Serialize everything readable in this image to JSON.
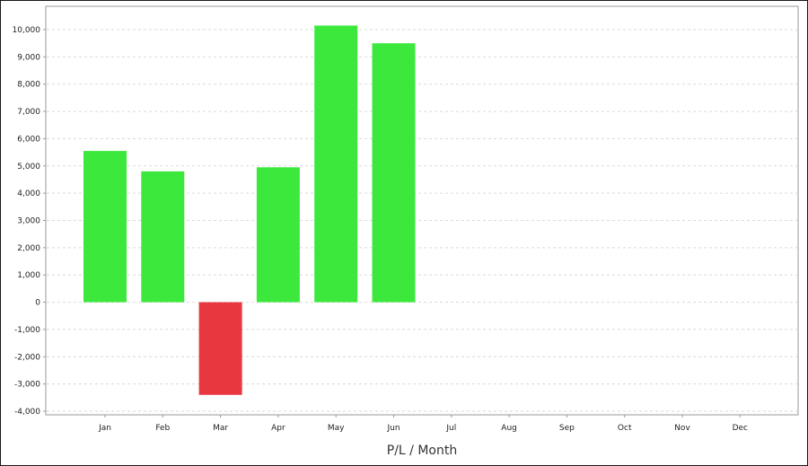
{
  "chart_data": {
    "type": "bar",
    "title": "",
    "xlabel": "P/L / Month",
    "ylabel": "",
    "categories": [
      "Jan",
      "Feb",
      "Mar",
      "Apr",
      "May",
      "Jun",
      "Jul",
      "Aug",
      "Sep",
      "Oct",
      "Nov",
      "Dec"
    ],
    "values": [
      5550,
      4800,
      -3400,
      4950,
      10150,
      9500,
      null,
      null,
      null,
      null,
      null,
      null
    ],
    "ylim": [
      -4000,
      10000
    ],
    "yticks": [
      10000,
      9000,
      8000,
      7000,
      6000,
      5000,
      4000,
      3000,
      2000,
      1000,
      0,
      -1000,
      -2000,
      -3000,
      -4000
    ],
    "ytick_labels": [
      "10,000",
      "9,000",
      "8,000",
      "7,000",
      "6,000",
      "5,000",
      "4,000",
      "3,000",
      "2,000",
      "1,000",
      "0",
      "-1,000",
      "-2,000",
      "-3,000",
      "-4,000"
    ],
    "grid": true,
    "colors": {
      "positive": "#3de83d",
      "negative": "#e8373f",
      "grid": "#d9d9d9",
      "axis": "#9a9a9a"
    }
  }
}
